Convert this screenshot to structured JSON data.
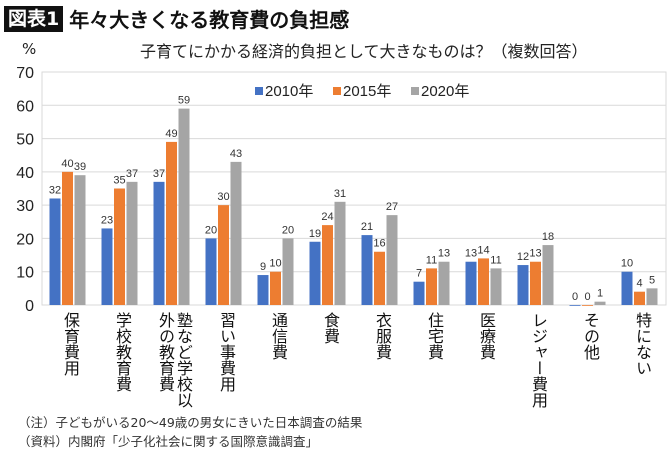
{
  "header": {
    "badge": "図表1",
    "title": "年々大きくなる教育費の負担感"
  },
  "chart_data": {
    "type": "bar",
    "title": "子育てにかかる経済的負担として大きなものは？（複数回答）",
    "ylabel": "%",
    "ylim": [
      0,
      70
    ],
    "yticks": [
      0,
      10,
      20,
      30,
      40,
      50,
      60,
      70
    ],
    "grid": true,
    "legend": "top-center",
    "categories": [
      "保育費用",
      "学校教育費",
      "塾など学校以外の教育費",
      "習い事費用",
      "通信費",
      "食費",
      "衣服費",
      "住宅費",
      "医療費",
      "レジャー費用",
      "その他",
      "特にない"
    ],
    "series": [
      {
        "name": "2010年",
        "color": "#4472C4",
        "values": [
          32,
          23,
          37,
          20,
          9,
          19,
          21,
          7,
          13,
          12,
          0,
          10
        ]
      },
      {
        "name": "2015年",
        "color": "#ED7D31",
        "values": [
          40,
          35,
          49,
          30,
          10,
          24,
          16,
          11,
          14,
          13,
          0,
          4
        ]
      },
      {
        "name": "2020年",
        "color": "#A5A5A5",
        "values": [
          39,
          37,
          59,
          43,
          20,
          31,
          27,
          13,
          11,
          18,
          1,
          5
        ]
      }
    ]
  },
  "notes": [
    "（注）子どもがいる20〜49歳の男女にきいた日本調査の結果",
    "（資料）内閣府「少子化社会に関する国際意識調査」"
  ]
}
